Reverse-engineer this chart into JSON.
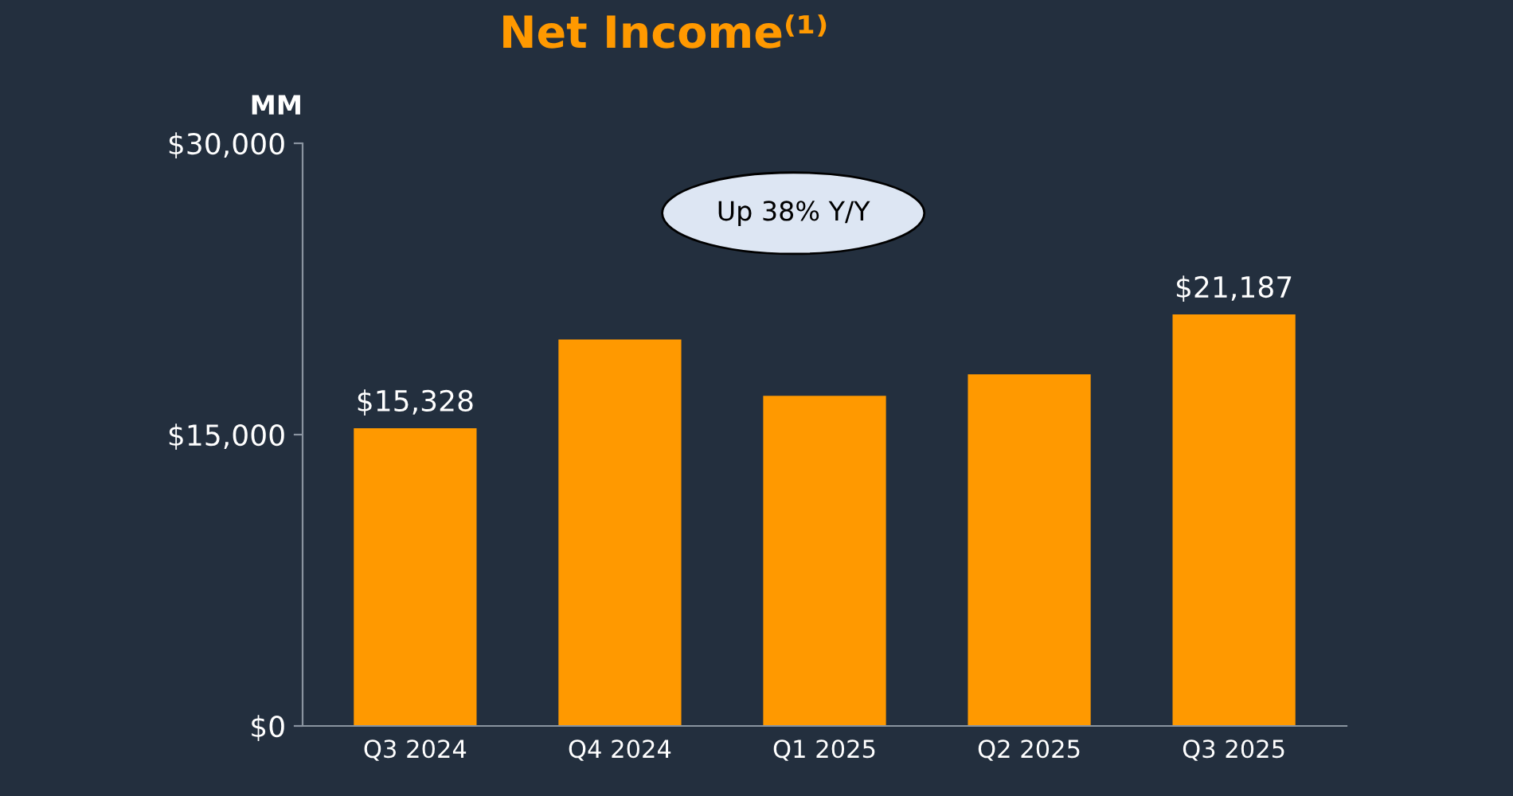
{
  "chart_data": {
    "type": "bar",
    "title": "Net Income⁽¹⁾",
    "ylabel": "MM",
    "categories": [
      "Q3 2024",
      "Q4 2024",
      "Q1 2025",
      "Q2 2025",
      "Q3 2025"
    ],
    "values": [
      15328,
      19900,
      17000,
      18100,
      21187
    ],
    "value_labels": [
      "$15,328",
      null,
      null,
      null,
      "$21,187"
    ],
    "color": "#ff9900",
    "ylim": [
      0,
      30000
    ],
    "yticks": [
      {
        "value": 0,
        "label": "$0"
      },
      {
        "value": 15000,
        "label": "$15,000"
      },
      {
        "value": 30000,
        "label": "$30,000"
      }
    ],
    "annotations": [
      "Up 38% Y/Y"
    ],
    "grid": false,
    "legend": false
  }
}
